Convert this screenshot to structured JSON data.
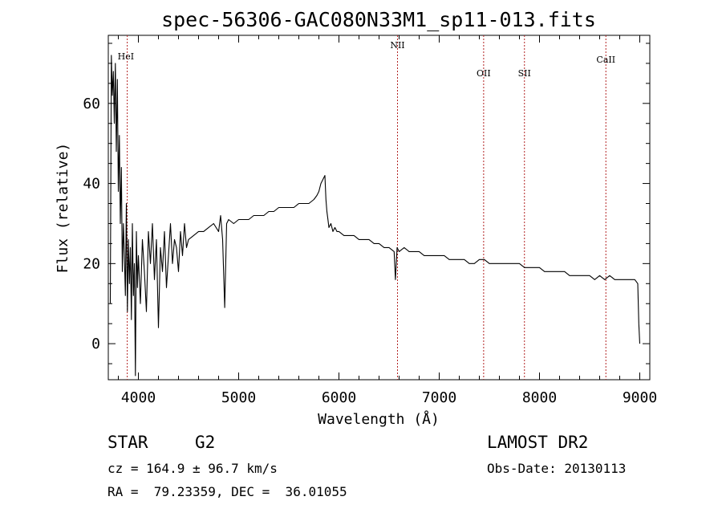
{
  "chart_data": {
    "type": "line",
    "title": "spec-56306-GAC080N33M1_sp11-013.fits",
    "xlabel": "Wavelength (Å)",
    "ylabel": "Flux (relative)",
    "xlim": [
      3700,
      9100
    ],
    "ylim": [
      -9,
      77
    ],
    "x_ticks": [
      4000,
      5000,
      6000,
      7000,
      8000,
      9000
    ],
    "y_ticks": [
      0,
      20,
      40,
      60
    ],
    "line_color": "#000000",
    "marker_color": "#b22222",
    "spectral_lines": [
      {
        "name": "HeI",
        "wavelength": 3889
      },
      {
        "name": "NII",
        "wavelength": 6584
      },
      {
        "name": "OII",
        "wavelength": 7443
      },
      {
        "name": "SII",
        "wavelength": 7850
      },
      {
        "name": "CaII",
        "wavelength": 8662
      }
    ],
    "series": [
      {
        "x": [
          3720,
          3730,
          3740,
          3750,
          3760,
          3770,
          3780,
          3790,
          3800,
          3810,
          3820,
          3830,
          3840,
          3850,
          3860,
          3870,
          3880,
          3890,
          3900,
          3910,
          3920,
          3930,
          3940,
          3950,
          3960,
          3970,
          3980,
          3990,
          4000,
          4020,
          4040,
          4060,
          4080,
          4100,
          4120,
          4140,
          4160,
          4180,
          4200,
          4220,
          4240,
          4260,
          4280,
          4300,
          4320,
          4340,
          4360,
          4380,
          4400,
          4420,
          4440,
          4460,
          4480,
          4500,
          4550,
          4600,
          4650,
          4700,
          4750,
          4800,
          4820,
          4840,
          4861,
          4880,
          4900,
          4950,
          5000,
          5050,
          5100,
          5150,
          5200,
          5250,
          5300,
          5350,
          5400,
          5450,
          5500,
          5550,
          5600,
          5650,
          5700,
          5750,
          5780,
          5800,
          5820,
          5840,
          5860,
          5870,
          5880,
          5890,
          5900,
          5920,
          5940,
          5960,
          5980,
          6000,
          6050,
          6100,
          6150,
          6200,
          6250,
          6300,
          6350,
          6400,
          6450,
          6500,
          6550,
          6563,
          6580,
          6600,
          6650,
          6700,
          6750,
          6800,
          6850,
          6900,
          6950,
          7000,
          7050,
          7100,
          7150,
          7200,
          7250,
          7300,
          7350,
          7400,
          7450,
          7500,
          7550,
          7600,
          7650,
          7700,
          7750,
          7800,
          7850,
          7900,
          7950,
          8000,
          8050,
          8100,
          8150,
          8200,
          8250,
          8300,
          8350,
          8400,
          8450,
          8500,
          8550,
          8600,
          8650,
          8700,
          8750,
          8800,
          8850,
          8900,
          8950,
          8980,
          8990,
          9000
        ],
        "y": [
          10,
          72,
          62,
          68,
          55,
          70,
          48,
          66,
          38,
          52,
          30,
          44,
          18,
          30,
          22,
          12,
          35,
          8,
          26,
          15,
          24,
          6,
          30,
          12,
          20,
          -8,
          28,
          14,
          22,
          10,
          26,
          18,
          8,
          28,
          20,
          30,
          16,
          26,
          4,
          24,
          18,
          28,
          14,
          22,
          30,
          20,
          26,
          24,
          18,
          28,
          22,
          30,
          24,
          26,
          27,
          28,
          28,
          29,
          30,
          28,
          32,
          26,
          9,
          30,
          31,
          30,
          31,
          31,
          31,
          32,
          32,
          32,
          33,
          33,
          34,
          34,
          34,
          34,
          35,
          35,
          35,
          36,
          37,
          38,
          40,
          41,
          42,
          36,
          33,
          31,
          29,
          30,
          28,
          29,
          28,
          28,
          27,
          27,
          27,
          26,
          26,
          26,
          25,
          25,
          24,
          24,
          23,
          16,
          24,
          23,
          24,
          23,
          23,
          23,
          22,
          22,
          22,
          22,
          22,
          21,
          21,
          21,
          21,
          20,
          20,
          21,
          21,
          20,
          20,
          20,
          20,
          20,
          20,
          20,
          19,
          19,
          19,
          19,
          18,
          18,
          18,
          18,
          18,
          17,
          17,
          17,
          17,
          17,
          16,
          17,
          16,
          17,
          16,
          16,
          16,
          16,
          16,
          15,
          5,
          0
        ]
      }
    ]
  },
  "info": {
    "object_class": "STAR",
    "subclass": "G2",
    "survey": "LAMOST DR2",
    "redshift_line": "cz = 164.9 ± 96.7 km/s",
    "obs_date_line": "Obs-Date: 20130113",
    "coords_line": "RA =  79.23359, DEC =  36.01055"
  }
}
